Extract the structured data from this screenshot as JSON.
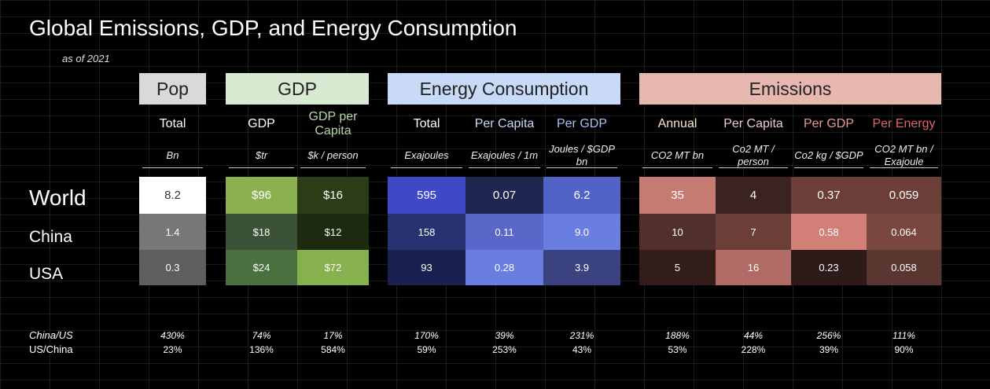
{
  "title": "Global Emissions, GDP, and Energy Consumption",
  "subtitle": "as of 2021",
  "chart_data": {
    "type": "table",
    "groups": [
      {
        "name": "Pop",
        "color": "#d9d9d9",
        "columns": [
          0
        ]
      },
      {
        "name": "GDP",
        "color": "#d9ead3",
        "columns": [
          1,
          2
        ]
      },
      {
        "name": "Energy Consumption",
        "color": "#c9daf8",
        "columns": [
          3,
          4,
          5
        ]
      },
      {
        "name": "Emissions",
        "color": "#e6b8af",
        "columns": [
          6,
          7,
          8,
          9
        ]
      }
    ],
    "columns": [
      {
        "label": "Total",
        "unit": "Bn",
        "color": "#ffffff"
      },
      {
        "label": "GDP",
        "unit": "$tr",
        "color": "#ffffff"
      },
      {
        "label": "GDP per Capita",
        "unit": "$k / person",
        "color": "#b6d7a8"
      },
      {
        "label": "Total",
        "unit": "Exajoules",
        "color": "#ffffff"
      },
      {
        "label": "Per Capita",
        "unit": "Exajoules / 1m",
        "color": "#c9daf8"
      },
      {
        "label": "Per GDP",
        "unit": "Joules / $GDP bn",
        "color": "#a4c2f4"
      },
      {
        "label": "Annual",
        "unit": "CO2 MT bn",
        "color": "#fce5cd"
      },
      {
        "label": "Per Capita",
        "unit": "Co2 MT / person",
        "color": "#f4cccc"
      },
      {
        "label": "Per GDP",
        "unit": "Co2 kg / $GDP",
        "color": "#ea9999"
      },
      {
        "label": "Per Energy",
        "unit": "CO2 MT bn / Exajoule",
        "color": "#e06666"
      }
    ],
    "rows": [
      {
        "label": "World",
        "values": [
          "8.2",
          "$96",
          "$16",
          "595",
          "0.07",
          "6.2",
          "35",
          "4",
          "0.37",
          "0.059"
        ],
        "colors": [
          "#ffffff",
          "#8bb04f",
          "#2a3d16",
          "#3f48c6",
          "#1f2750",
          "#5163c4",
          "#c47b71",
          "#3a2321",
          "#6b3f38",
          "#6b3f38"
        ]
      },
      {
        "label": "China",
        "values": [
          "1.4",
          "$18",
          "$12",
          "158",
          "0.11",
          "9.0",
          "10",
          "7",
          "0.58",
          "0.064"
        ],
        "colors": [
          "#777777",
          "#3b5236",
          "#1c2a10",
          "#273271",
          "#5a66c8",
          "#6a7de0",
          "#51302c",
          "#6b3f38",
          "#d28077",
          "#7a4740"
        ]
      },
      {
        "label": "USA",
        "values": [
          "0.3",
          "$24",
          "$72",
          "93",
          "0.28",
          "3.9",
          "5",
          "16",
          "0.23",
          "0.058"
        ],
        "colors": [
          "#5e5e5e",
          "#4a7040",
          "#87b04e",
          "#1a2150",
          "#6a7de0",
          "#3a4380",
          "#331d1b",
          "#b06c64",
          "#2e1a18",
          "#5a3630"
        ]
      }
    ],
    "ratios": [
      {
        "label": "China/US",
        "values": [
          "430%",
          "74%",
          "17%",
          "170%",
          "39%",
          "231%",
          "188%",
          "44%",
          "256%",
          "111%"
        ]
      },
      {
        "label": "US/China",
        "values": [
          "23%",
          "136%",
          "584%",
          "59%",
          "253%",
          "43%",
          "53%",
          "228%",
          "39%",
          "90%"
        ]
      }
    ]
  }
}
